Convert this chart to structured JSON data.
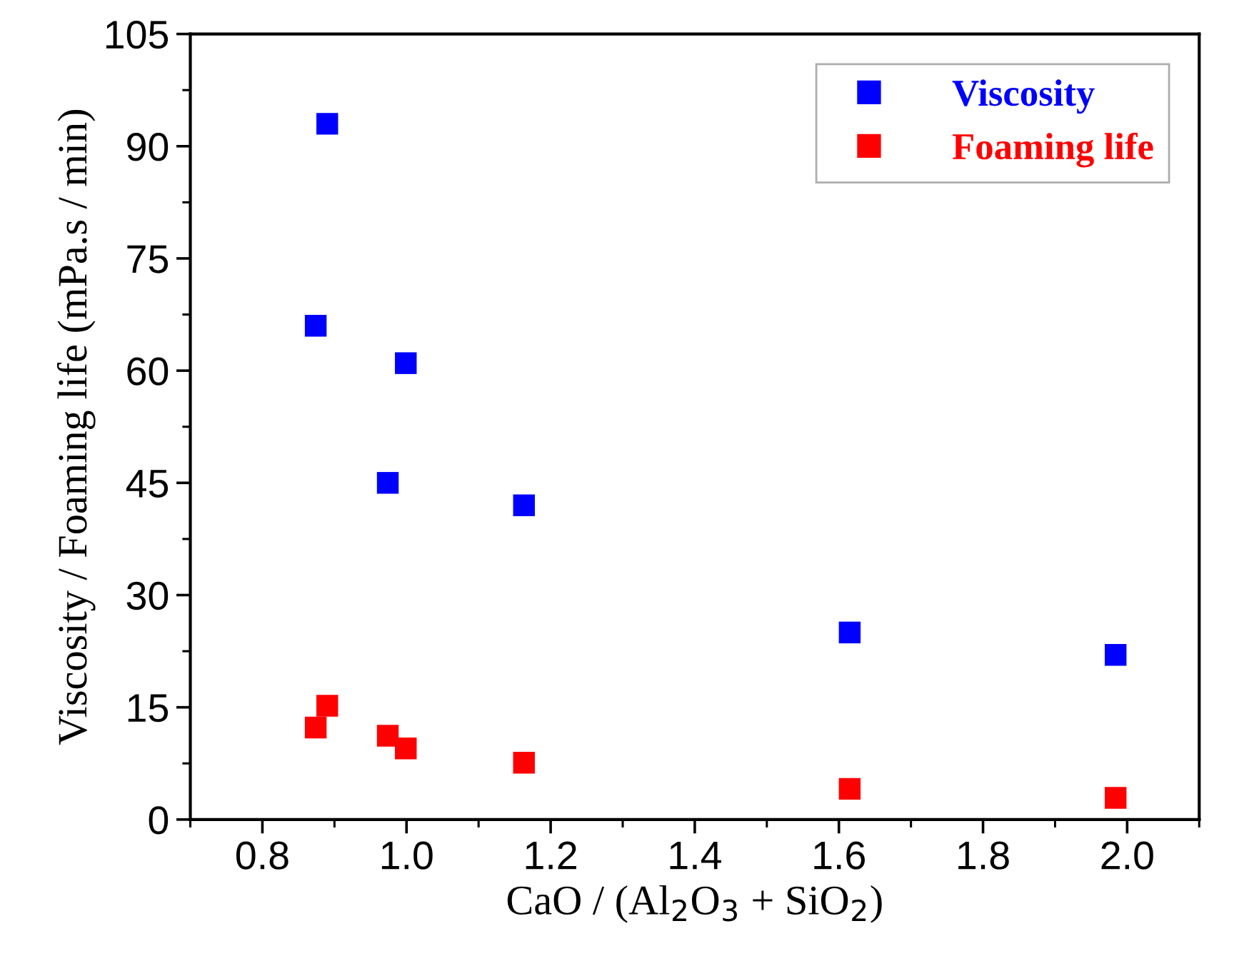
{
  "chart_data": {
    "type": "scatter",
    "xlabel": "CaO / (Al$_{2}$O$_{3}$ + SiO$_{2}$)",
    "ylabel": "Viscosity / Foaming life (mPa.s / min)",
    "series": [
      {
        "name": "Viscosity",
        "color": "#0000ff",
        "x": [
          0.874,
          0.89,
          0.974,
          0.999,
          1.163,
          1.615,
          1.984
        ],
        "values": [
          66,
          93,
          45,
          61,
          42,
          25,
          22
        ]
      },
      {
        "name": "Foaming life",
        "color": "#ff0000",
        "x": [
          0.874,
          0.89,
          0.974,
          0.999,
          1.163,
          1.615,
          1.984
        ],
        "values": [
          12.3,
          15.2,
          11.2,
          9.5,
          7.6,
          4.1,
          2.9
        ]
      }
    ],
    "xlim": [
      0.7,
      2.1
    ],
    "xticks": [
      {
        "value": 0.7,
        "label": null
      },
      {
        "value": 0.8,
        "label": "0.8"
      },
      {
        "value": 0.9,
        "label": null
      },
      {
        "value": 1.0,
        "label": "1.0"
      },
      {
        "value": 1.1,
        "label": null
      },
      {
        "value": 1.2,
        "label": "1.2"
      },
      {
        "value": 1.3,
        "label": null
      },
      {
        "value": 1.4,
        "label": "1.4"
      },
      {
        "value": 1.5,
        "label": null
      },
      {
        "value": 1.6,
        "label": "1.6"
      },
      {
        "value": 1.7,
        "label": null
      },
      {
        "value": 1.8,
        "label": "1.8"
      },
      {
        "value": 1.9,
        "label": null
      },
      {
        "value": 2.0,
        "label": "2.0"
      },
      {
        "value": 2.1,
        "label": null
      }
    ],
    "ylim": [
      0,
      105
    ],
    "yticks": [
      0,
      {
        "value": 7.5,
        "label": null
      },
      15,
      {
        "value": 22.5,
        "label": null
      },
      30,
      {
        "value": 37.5,
        "label": null
      },
      45,
      {
        "value": 52.5,
        "label": null
      },
      60,
      {
        "value": 67.5,
        "label": null
      },
      75,
      {
        "value": 82.5,
        "label": null
      },
      90,
      {
        "value": 97.5,
        "label": null
      },
      105
    ],
    "marker": "square",
    "legend": "top right",
    "grid": false
  }
}
